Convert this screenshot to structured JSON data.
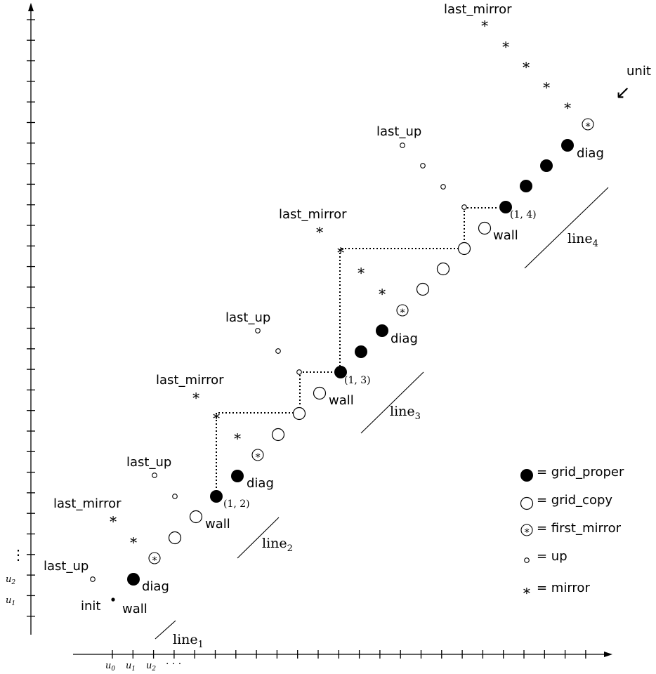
{
  "axes": {
    "x_ticks": [
      "u",
      "u",
      "u"
    ],
    "x_tick_subs": [
      "0",
      "1",
      "2"
    ],
    "x_ellipsis": "· · ·",
    "y_ticks": [
      "u",
      "u"
    ],
    "y_tick_subs": [
      "1",
      "2"
    ],
    "y_ellipsis": "⋮"
  },
  "labels": {
    "init": "init",
    "wall": "wall",
    "diag": "diag",
    "last_up": "last_up",
    "last_mirror": "last_mirror",
    "unit": "unit",
    "coord_12": "(1, 2)",
    "coord_13": "(1, 3)",
    "coord_14": "(1, 4)"
  },
  "lines": [
    {
      "name": "line",
      "sub": "1"
    },
    {
      "name": "line",
      "sub": "2"
    },
    {
      "name": "line",
      "sub": "3"
    },
    {
      "name": "line",
      "sub": "4"
    }
  ],
  "legend": [
    {
      "symbol": "grid_proper",
      "text": "= grid_proper"
    },
    {
      "symbol": "grid_copy",
      "text": "= grid_copy"
    },
    {
      "symbol": "first_mirror",
      "text": "= first_mirror"
    },
    {
      "symbol": "up",
      "text": "= up"
    },
    {
      "symbol": "mirror",
      "text": "= mirror"
    }
  ],
  "symbols": {
    "mirror_glyph": "∗",
    "unit_arrow": "↙"
  }
}
